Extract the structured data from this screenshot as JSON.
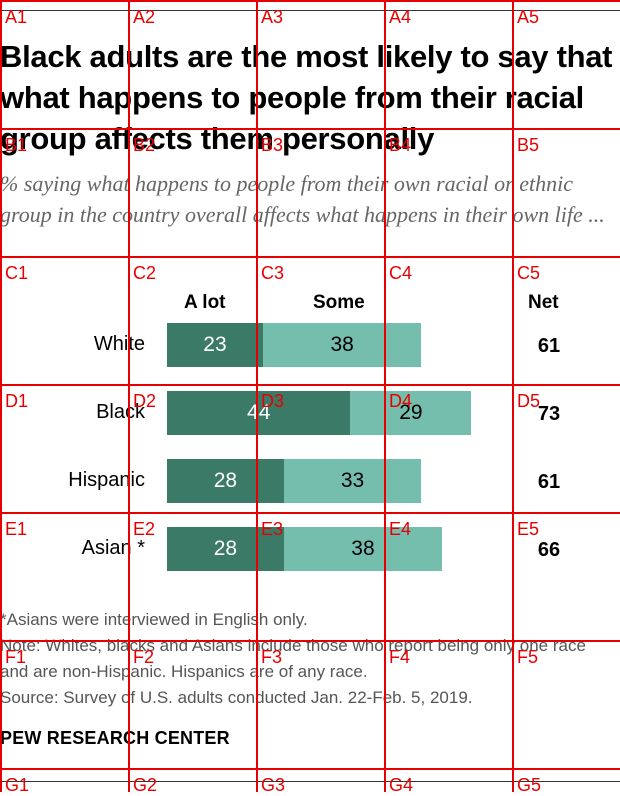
{
  "title": "Black adults are the most likely to say that what happens to people from their racial group affects them personally",
  "subtitle": "% saying what happens to people from their own racial or ethnic group in the country overall affects what happens in their own life ...",
  "colors": {
    "a_lot": "#3c7a68",
    "some": "#75bdad",
    "grid": "#e60000"
  },
  "grid_labels": {
    "row_A": [
      "A1",
      "A2",
      "A3",
      "A4",
      "A5"
    ],
    "row_B": [
      "B1",
      "B2",
      "B3",
      "B4",
      "B5"
    ],
    "row_C": [
      "C1",
      "C2",
      "C3",
      "C4",
      "C5"
    ],
    "row_D": [
      "D1",
      "D2",
      "D3",
      "D4",
      "D5"
    ],
    "row_E": [
      "E1",
      "E2",
      "E3",
      "E4",
      "E5"
    ],
    "row_F": [
      "F1",
      "F2",
      "F3",
      "F4",
      "F5"
    ],
    "row_G": [
      "G1",
      "G2",
      "G3",
      "G4",
      "G5"
    ]
  },
  "chart_data": {
    "type": "bar",
    "stacked": true,
    "orientation": "horizontal",
    "categories": [
      "White",
      "Black",
      "Hispanic",
      "Asian *"
    ],
    "series": [
      {
        "name": "A lot",
        "values": [
          23,
          44,
          28,
          28
        ]
      },
      {
        "name": "Some",
        "values": [
          38,
          29,
          33,
          38
        ]
      }
    ],
    "net_label": "Net",
    "net": [
      61,
      73,
      61,
      66
    ]
  },
  "footnotes": {
    "asian": "*Asians were interviewed in English only.",
    "note": "Note: Whites, blacks and Asians include those who report being only one race and are non-Hispanic. Hispanics are of any race.",
    "source": "Source: Survey of U.S. adults conducted Jan. 22-Feb. 5, 2019."
  },
  "source_org": "PEW RESEARCH CENTER"
}
